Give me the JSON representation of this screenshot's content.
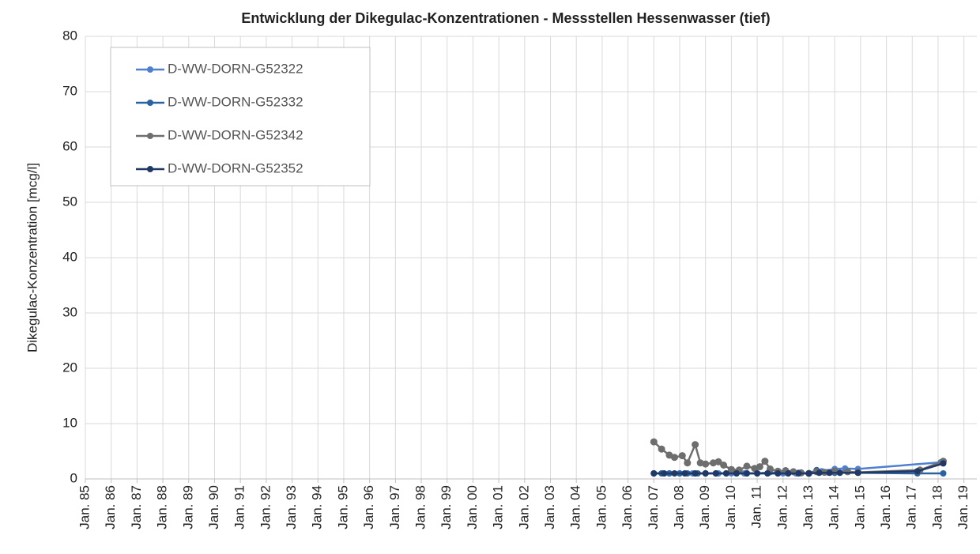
{
  "chart_data": {
    "type": "line",
    "title": "Entwicklung der Dikegulac-Konzentrationen  - Messstellen Hessenwasser (tief)",
    "y_label": "Dikegulac-Konzentration [mcg/l]",
    "xlim": [
      1985,
      2019.5
    ],
    "xticks": [
      {
        "value": 1985,
        "label": "Jan. 85"
      },
      {
        "value": 1986,
        "label": "Jan. 86"
      },
      {
        "value": 1987,
        "label": "Jan. 87"
      },
      {
        "value": 1988,
        "label": "Jan. 88"
      },
      {
        "value": 1989,
        "label": "Jan. 89"
      },
      {
        "value": 1990,
        "label": "Jan. 90"
      },
      {
        "value": 1991,
        "label": "Jan. 91"
      },
      {
        "value": 1992,
        "label": "Jan. 92"
      },
      {
        "value": 1993,
        "label": "Jan. 93"
      },
      {
        "value": 1994,
        "label": "Jan. 94"
      },
      {
        "value": 1995,
        "label": "Jan. 95"
      },
      {
        "value": 1996,
        "label": "Jan. 96"
      },
      {
        "value": 1997,
        "label": "Jan. 97"
      },
      {
        "value": 1998,
        "label": "Jan. 98"
      },
      {
        "value": 1999,
        "label": "Jan. 99"
      },
      {
        "value": 2000,
        "label": "Jan. 00"
      },
      {
        "value": 2001,
        "label": "Jan. 01"
      },
      {
        "value": 2002,
        "label": "Jan. 02"
      },
      {
        "value": 2003,
        "label": "Jan. 03"
      },
      {
        "value": 2004,
        "label": "Jan. 04"
      },
      {
        "value": 2005,
        "label": "Jan. 05"
      },
      {
        "value": 2006,
        "label": "Jan. 06"
      },
      {
        "value": 2007,
        "label": "Jan. 07"
      },
      {
        "value": 2008,
        "label": "Jan. 08"
      },
      {
        "value": 2009,
        "label": "Jan. 09"
      },
      {
        "value": 2010,
        "label": "Jan. 10"
      },
      {
        "value": 2011,
        "label": "Jan. 11"
      },
      {
        "value": 2012,
        "label": "Jan. 12"
      },
      {
        "value": 2013,
        "label": "Jan. 13"
      },
      {
        "value": 2014,
        "label": "Jan. 14"
      },
      {
        "value": 2015,
        "label": "Jan. 15"
      },
      {
        "value": 2016,
        "label": "Jan. 16"
      },
      {
        "value": 2017,
        "label": "Jan. 17"
      },
      {
        "value": 2018,
        "label": "Jan. 18"
      },
      {
        "value": 2019,
        "label": "Jan. 19"
      }
    ],
    "ylim": [
      0,
      80
    ],
    "yticks": [
      0,
      10,
      20,
      30,
      40,
      50,
      60,
      70,
      80
    ],
    "grid": true,
    "legend": "top-left",
    "series": [
      {
        "name": "D-WW-DORN-G52322",
        "color": "#4f7fcf",
        "x": [
          2007.0,
          2007.3,
          2007.6,
          2008.0,
          2008.5,
          2009.0,
          2009.5,
          2010.0,
          2010.5,
          2011.0,
          2011.5,
          2012.0,
          2012.5,
          2013.0,
          2013.5,
          2014.0,
          2014.4,
          2014.9,
          2018.1
        ],
        "values": [
          1,
          1,
          1,
          1,
          1,
          1,
          1,
          1,
          1,
          1,
          1.2,
          1,
          1,
          1,
          1.4,
          1.8,
          1.9,
          1.8,
          3.0
        ]
      },
      {
        "name": "D-WW-DORN-G52332",
        "color": "#2a64a0",
        "x": [
          2007.0,
          2007.3,
          2007.6,
          2008.0,
          2008.3,
          2008.7,
          2009.0,
          2009.4,
          2009.8,
          2010.2,
          2010.6,
          2011.0,
          2011.4,
          2011.8,
          2012.2,
          2012.6,
          2013.0,
          2013.3,
          2013.7,
          2014.0,
          2014.9,
          2017.2,
          2018.2
        ],
        "values": [
          1,
          1,
          1,
          1,
          1,
          1,
          1,
          1,
          1,
          1,
          1,
          1,
          1,
          1,
          1,
          1.1,
          1,
          1.6,
          1.2,
          1.1,
          1.1,
          1.0,
          1.0
        ]
      },
      {
        "name": "D-WW-DORN-G52342",
        "color": "#6e6e6e",
        "x": [
          2007.0,
          2007.3,
          2007.6,
          2007.8,
          2008.1,
          2008.3,
          2008.6,
          2008.8,
          2009.0,
          2009.3,
          2009.5,
          2009.7,
          2010.0,
          2010.3,
          2010.6,
          2010.9,
          2011.1,
          2011.3,
          2011.5,
          2011.8,
          2012.1,
          2012.4,
          2012.7,
          2013.0,
          2013.3,
          2013.6,
          2014.0,
          2014.5,
          2014.9,
          2017.3,
          2018.2
        ],
        "values": [
          6.7,
          5.4,
          4.3,
          3.9,
          4.2,
          2.9,
          6.2,
          2.9,
          2.7,
          2.9,
          3.1,
          2.5,
          1.7,
          1.6,
          2.3,
          1.9,
          2.2,
          3.2,
          1.8,
          1.4,
          1.5,
          1.3,
          1.1,
          1.0,
          1.3,
          1.2,
          1.4,
          1.3,
          1.2,
          1.6,
          3.2
        ]
      },
      {
        "name": "D-WW-DORN-G52352",
        "color": "#203864",
        "x": [
          2007.0,
          2007.4,
          2007.8,
          2008.2,
          2008.6,
          2009.0,
          2009.4,
          2009.8,
          2010.2,
          2010.6,
          2011.0,
          2011.4,
          2011.8,
          2012.2,
          2012.6,
          2013.0,
          2013.4,
          2013.8,
          2014.2,
          2014.9,
          2017.2,
          2018.2
        ],
        "values": [
          1,
          1,
          1,
          1,
          1,
          1,
          1,
          1,
          1,
          1,
          1,
          1,
          1,
          1,
          1,
          1,
          1.1,
          1.1,
          1.1,
          1.1,
          1.4,
          2.8
        ]
      }
    ]
  }
}
